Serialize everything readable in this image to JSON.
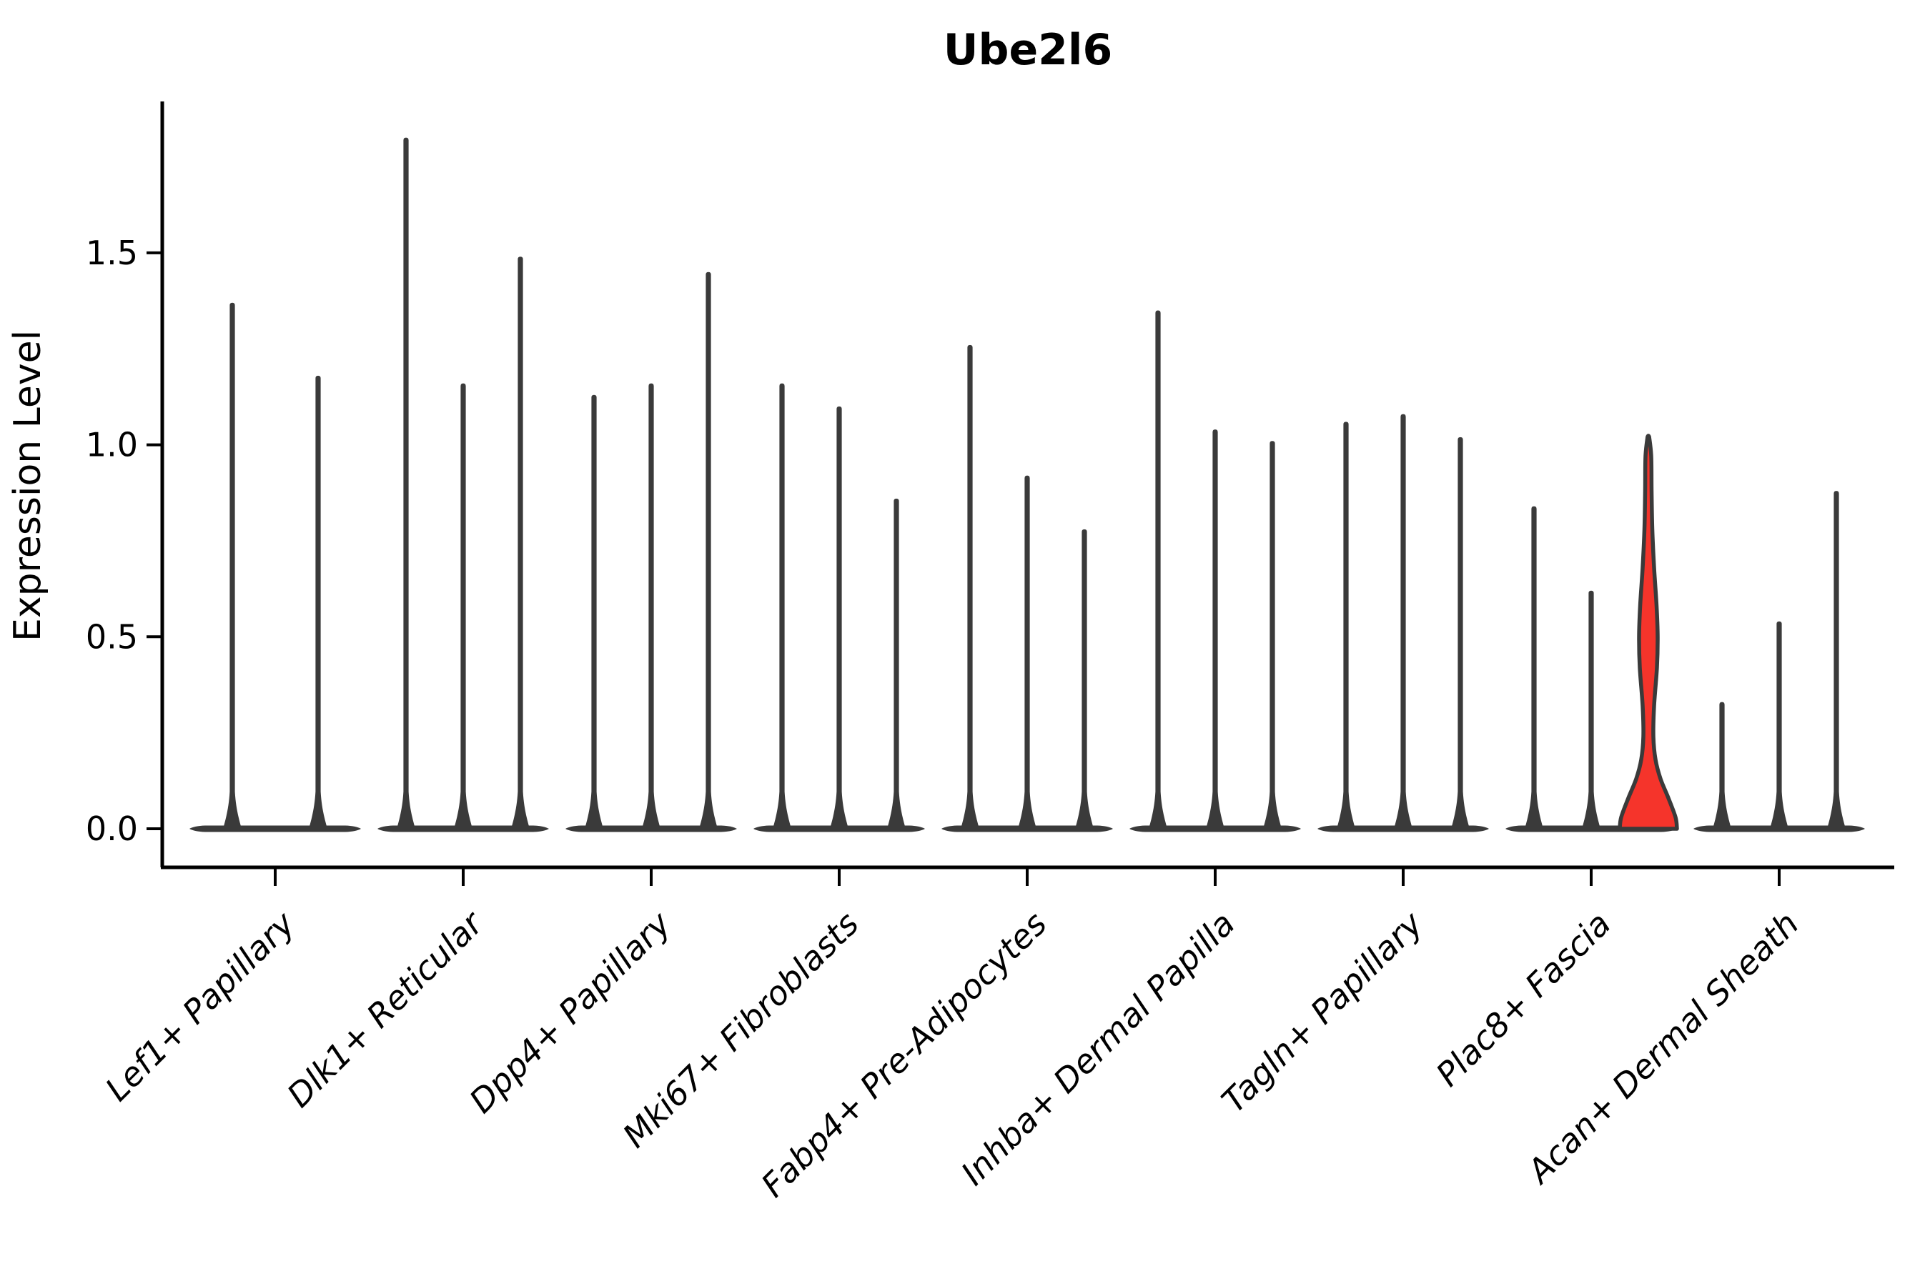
{
  "title": "Ube2l6",
  "ylabel": "Expression Level",
  "colors": {
    "violin_stroke": "#3a3a3a",
    "highlight_fill": "#f5342b",
    "axis": "#000000",
    "background": "#ffffff"
  },
  "chart_data": {
    "type": "violin",
    "title": "Ube2l6",
    "xlabel": "",
    "ylabel": "Expression Level",
    "ylim": [
      -0.1,
      1.89
    ],
    "yticks": [
      "0.0",
      "0.5",
      "1.0",
      "1.5"
    ],
    "ytick_values": [
      0.0,
      0.5,
      1.0,
      1.5
    ],
    "grid": false,
    "legend": "none",
    "categories": [
      "Lef1+ Papillary",
      "Dlk1+ Reticular",
      "Dpp4+ Papillary",
      "Mki67+ Fibroblasts",
      "Fabp4+ Pre-Adipocytes",
      "Inhba+ Dermal Papilla",
      "Tagln+ Papillary",
      "Plac8+ Fascia",
      "Acan+ Dermal Sheath"
    ],
    "groups": [
      {
        "label": "Lef1+ Papillary",
        "violins": [
          {
            "max": 1.37
          },
          {
            "max": 1.18
          }
        ]
      },
      {
        "label": "Dlk1+ Reticular",
        "violins": [
          {
            "max": 1.8
          },
          {
            "max": 1.16
          },
          {
            "max": 1.49
          }
        ]
      },
      {
        "label": "Dpp4+ Papillary",
        "violins": [
          {
            "max": 1.13
          },
          {
            "max": 1.16
          },
          {
            "max": 1.45
          }
        ]
      },
      {
        "label": "Mki67+ Fibroblasts",
        "violins": [
          {
            "max": 1.16
          },
          {
            "max": 1.1
          },
          {
            "max": 0.86
          }
        ]
      },
      {
        "label": "Fabp4+ Pre-Adipocytes",
        "violins": [
          {
            "max": 1.26
          },
          {
            "max": 0.92
          },
          {
            "max": 0.78
          }
        ]
      },
      {
        "label": "Inhba+ Dermal Papilla",
        "violins": [
          {
            "max": 1.35
          },
          {
            "max": 1.04
          },
          {
            "max": 1.01
          }
        ]
      },
      {
        "label": "Tagln+ Papillary",
        "violins": [
          {
            "max": 1.06
          },
          {
            "max": 1.08
          },
          {
            "max": 1.02
          }
        ]
      },
      {
        "label": "Plac8+ Fascia",
        "violins": [
          {
            "max": 0.84
          },
          {
            "max": 0.62
          },
          {
            "max": 1.02,
            "highlight": true
          }
        ]
      },
      {
        "label": "Acan+ Dermal Sheath",
        "violins": [
          {
            "max": 0.33
          },
          {
            "max": 0.54
          },
          {
            "max": 0.88
          }
        ]
      }
    ],
    "highlight": {
      "group": "Plac8+ Fascia",
      "violin_index": 2,
      "max": 1.02,
      "bulge_center": 0.48,
      "fill": "#f5342b"
    }
  }
}
